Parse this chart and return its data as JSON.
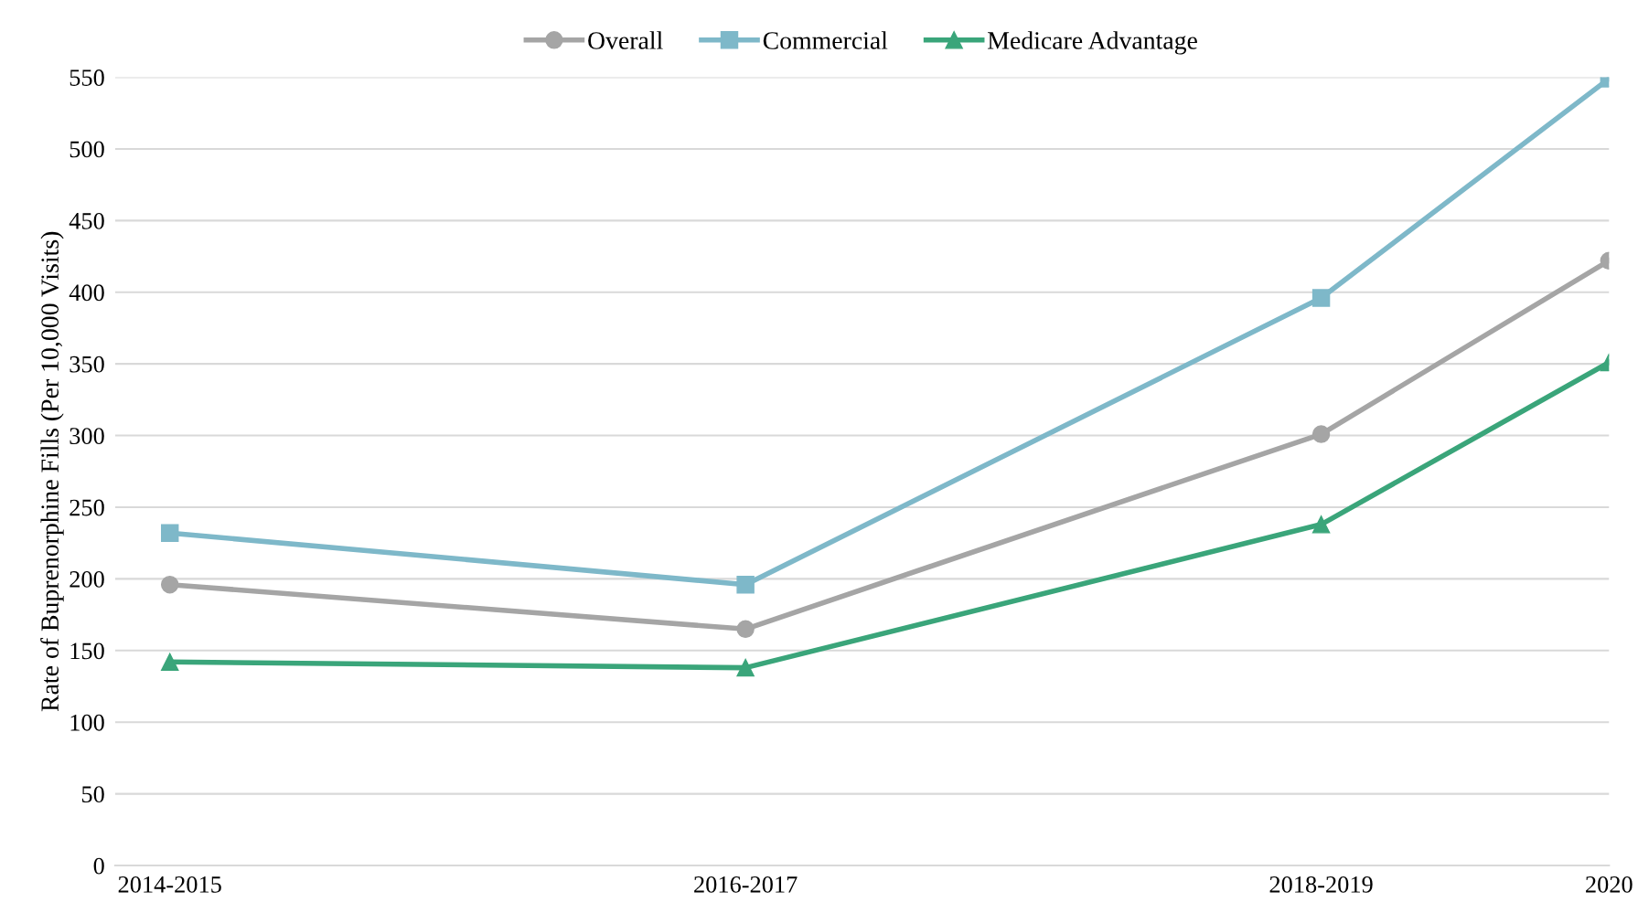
{
  "chart_data": {
    "type": "line",
    "ylabel": "Rate of Buprenorphine Fills (Per 10,000 Visits)",
    "categories": [
      "2014-2015",
      null,
      "2016-2017",
      null,
      "2018-2019",
      "2020"
    ],
    "ylim": [
      0,
      550
    ],
    "yticks": [
      0,
      50,
      100,
      150,
      200,
      250,
      300,
      350,
      400,
      450,
      500,
      550
    ],
    "grid": "y",
    "legend": "top",
    "series": [
      {
        "name": "Overall",
        "color": "#a5a5a5",
        "marker": "circle",
        "values": [
          196,
          null,
          165,
          null,
          301,
          422
        ]
      },
      {
        "name": "Commercial",
        "color": "#7eb8c9",
        "marker": "square",
        "values": [
          232,
          null,
          196,
          null,
          396,
          549
        ]
      },
      {
        "name": "Medicare Advantage",
        "color": "#3aa57a",
        "marker": "triangle",
        "values": [
          142,
          null,
          138,
          null,
          238,
          351
        ]
      }
    ]
  }
}
